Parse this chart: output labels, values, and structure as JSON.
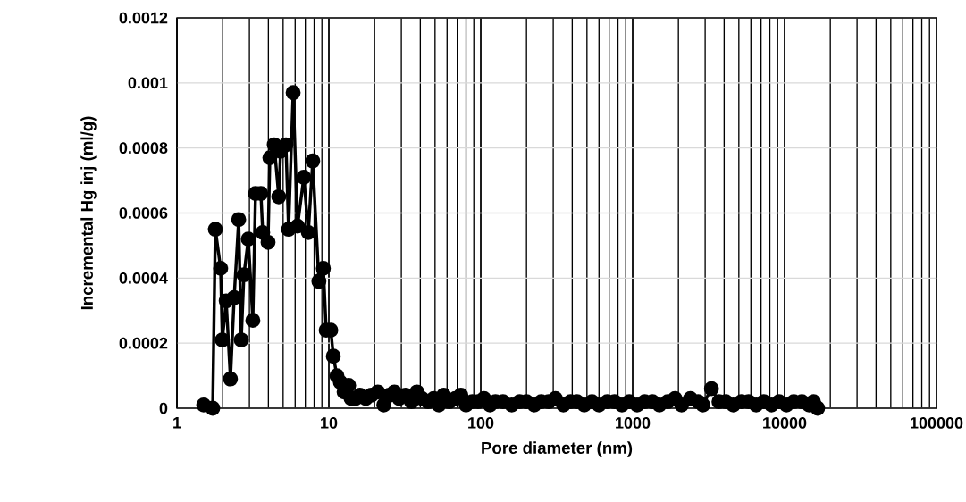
{
  "chart_data": {
    "type": "line",
    "xlabel": "Pore diameter (nm)",
    "ylabel": "Incremental Hg inj (ml/g)",
    "log": "x",
    "grid": true,
    "marker": "circle",
    "line_style": "solid",
    "xlim": [
      1,
      100000
    ],
    "xticks": [
      1,
      10,
      100,
      1000,
      10000,
      100000
    ],
    "ylim": [
      0,
      0.0012
    ],
    "yticks": [
      0,
      0.0002,
      0.0004,
      0.0006,
      0.0008,
      0.001,
      0.0012
    ],
    "series": [
      {
        "color": "#000000",
        "x": [
          1.5,
          1.72,
          1.79,
          1.94,
          1.99,
          2.11,
          2.25,
          2.38,
          2.55,
          2.65,
          2.76,
          2.95,
          3.16,
          3.29,
          3.57,
          3.67,
          3.98,
          4.09,
          4.37,
          4.68,
          4.81,
          5.22,
          5.43,
          5.82,
          6.22,
          6.84,
          7.33,
          7.83,
          8.6,
          9.2,
          9.6,
          10.3,
          10.7,
          11.3,
          11.9,
          12.6,
          13.5,
          14,
          15,
          16,
          17.5,
          19,
          21,
          23,
          25,
          27,
          29,
          32,
          35,
          38,
          41,
          45,
          49,
          53,
          57,
          62,
          68,
          74,
          80,
          88,
          96,
          105,
          115,
          125,
          140,
          160,
          180,
          200,
          225,
          250,
          280,
          310,
          350,
          390,
          430,
          480,
          540,
          600,
          680,
          760,
          850,
          950,
          1070,
          1200,
          1350,
          1500,
          1700,
          1900,
          2100,
          2400,
          2700,
          2900,
          3300,
          3700,
          4100,
          4600,
          5200,
          5800,
          6500,
          7300,
          8200,
          9200,
          10300,
          11500,
          13000,
          14500,
          15500,
          16500
        ],
        "values": [
          1e-05,
          0,
          0.00055,
          0.00043,
          0.00021,
          0.00033,
          9e-05,
          0.00034,
          0.00058,
          0.00021,
          0.00041,
          0.00052,
          0.00027,
          0.00066,
          0.00066,
          0.00054,
          0.00051,
          0.00077,
          0.00081,
          0.00065,
          0.00079,
          0.00081,
          0.00055,
          0.00097,
          0.00056,
          0.00071,
          0.00054,
          0.00076,
          0.00039,
          0.00043,
          0.00024,
          0.00024,
          0.00016,
          0.0001,
          8e-05,
          5e-05,
          7e-05,
          3e-05,
          3e-05,
          4e-05,
          3e-05,
          4e-05,
          5e-05,
          1e-05,
          4e-05,
          5e-05,
          3e-05,
          4e-05,
          2e-05,
          5e-05,
          3e-05,
          2e-05,
          3e-05,
          1e-05,
          4e-05,
          2e-05,
          3e-05,
          4e-05,
          1e-05,
          2e-05,
          2e-05,
          3e-05,
          1e-05,
          2e-05,
          2e-05,
          1e-05,
          2e-05,
          2e-05,
          1e-05,
          2e-05,
          2e-05,
          3e-05,
          1e-05,
          2e-05,
          2e-05,
          1e-05,
          2e-05,
          1e-05,
          2e-05,
          2e-05,
          1e-05,
          2e-05,
          1e-05,
          2e-05,
          2e-05,
          1e-05,
          2e-05,
          3e-05,
          1e-05,
          3e-05,
          2e-05,
          1e-05,
          6e-05,
          2e-05,
          2e-05,
          1e-05,
          2e-05,
          2e-05,
          1e-05,
          2e-05,
          1e-05,
          2e-05,
          1e-05,
          2e-05,
          2e-05,
          1e-05,
          2e-05,
          0
        ]
      }
    ]
  }
}
